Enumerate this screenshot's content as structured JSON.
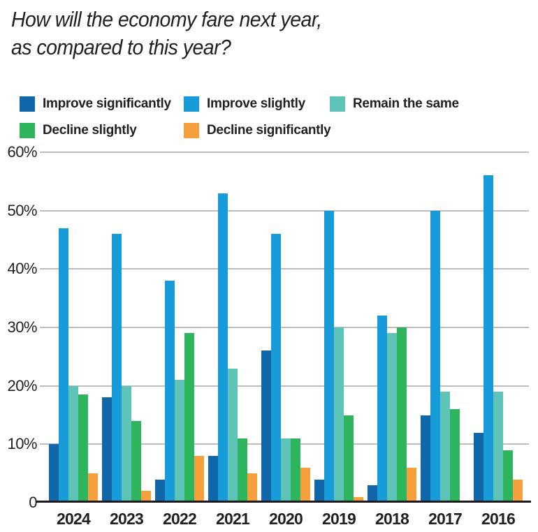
{
  "title": {
    "line1": "How will the economy fare next year,",
    "line2": "as compared to this year?"
  },
  "colors": {
    "improve_significantly": "#1167a9",
    "improve_slightly": "#189cd9",
    "remain_the_same": "#5ec4b8",
    "decline_slightly": "#2eb45c",
    "decline_significantly": "#f5a03d",
    "gridline": "#bdbdbd",
    "axis_line": "#1c1a1a",
    "text": "#231f20"
  },
  "chart_data": {
    "type": "bar",
    "title": "How will the economy fare next year, as compared to this year?",
    "categories": [
      "2024",
      "2023",
      "2022",
      "2021",
      "2020",
      "2019",
      "2018",
      "2017",
      "2016"
    ],
    "series": [
      {
        "name": "Improve significantly",
        "color": "#1167a9",
        "values": [
          10,
          18,
          4,
          8,
          26,
          4,
          3,
          15,
          12
        ]
      },
      {
        "name": "Improve slightly",
        "color": "#189cd9",
        "values": [
          47,
          46,
          38,
          53,
          46,
          50,
          32,
          50,
          56
        ]
      },
      {
        "name": "Remain the same",
        "color": "#5ec4b8",
        "values": [
          20,
          20,
          21,
          23,
          11,
          30,
          29,
          19,
          19
        ]
      },
      {
        "name": "Decline slightly",
        "color": "#2eb45c",
        "values": [
          18.5,
          14,
          29,
          11,
          11,
          15,
          30,
          16,
          9
        ]
      },
      {
        "name": "Decline significantly",
        "color": "#f5a03d",
        "values": [
          5,
          2,
          8,
          5,
          6,
          1,
          6,
          0,
          4
        ]
      }
    ],
    "xlabel": "",
    "ylabel": "",
    "ylim": [
      0,
      60
    ],
    "yticks": [
      {
        "value": 60,
        "label": "60%"
      },
      {
        "value": 50,
        "label": "50%"
      },
      {
        "value": 40,
        "label": "40%"
      },
      {
        "value": 30,
        "label": "30%"
      },
      {
        "value": 20,
        "label": "20%"
      },
      {
        "value": 10,
        "label": "10%"
      },
      {
        "value": 0,
        "label": "0"
      }
    ],
    "grid": true,
    "legend_position": "top"
  }
}
